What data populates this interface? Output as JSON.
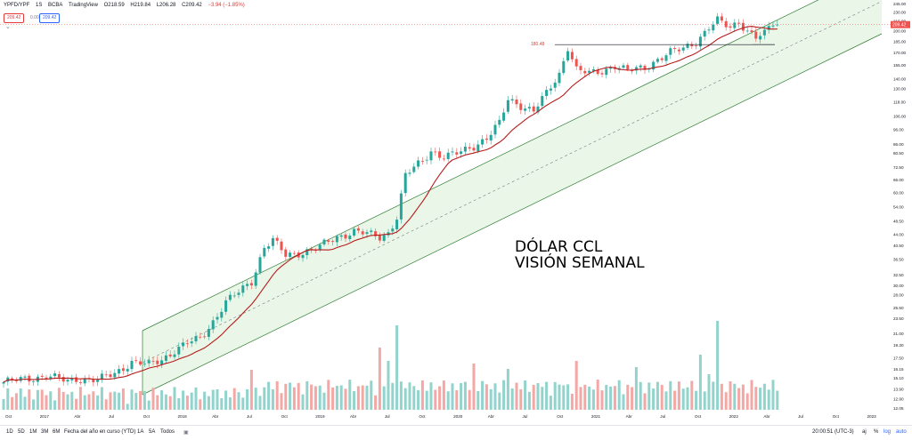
{
  "header": {
    "symbol": "YPFD/YPF",
    "interval": "1S",
    "exchange": "BCBA",
    "source": "TradingView",
    "open": "O218.59",
    "high": "H219.84",
    "low": "L206.28",
    "close": "C209.42",
    "change": "−3.94 (−1.85%)",
    "bid": "209.42",
    "spread": "0.00",
    "ask": "209.42",
    "chevron": "⌄"
  },
  "annotation": {
    "line1": "DÓLAR CCL",
    "line2": "VISIÓN SEMANAL"
  },
  "resistance_label": "180.48",
  "last_price_label": "209.42",
  "colors": {
    "up": "#26a69a",
    "down": "#ef5350",
    "vol_up": "#92d3cc",
    "vol_down": "#f4a8a6",
    "channel_fill": "#eaf6e8",
    "channel_line": "#2e7d32",
    "ma": "#b71c1c"
  },
  "chart_data": {
    "type": "candlestick",
    "scale": "log",
    "y_ticks": [
      "245.00",
      "230.00",
      "215.00",
      "200.00",
      "185.00",
      "170.00",
      "155.00",
      "140.00",
      "130.00",
      "118.00",
      "106.00",
      "96.00",
      "86.00",
      "80.50",
      "72.50",
      "66.00",
      "60.00",
      "54.00",
      "48.50",
      "44.00",
      "40.50",
      "36.50",
      "32.50",
      "30.00",
      "28.00",
      "25.50",
      "23.50",
      "21.00",
      "19.30",
      "17.50",
      "16.15",
      "15.10",
      "13.90",
      "12.90",
      "12.05"
    ],
    "x_ticks": [
      "Oct",
      "2017",
      "Abr",
      "Jul",
      "Oct",
      "2018",
      "Abr",
      "Jul",
      "Oct",
      "2019",
      "Abr",
      "Jul",
      "Oct",
      "2020",
      "Abr",
      "Jul",
      "Oct",
      "2021",
      "Abr",
      "Jul",
      "Oct",
      "2022",
      "Abr",
      "Jul",
      "Oct",
      "2023"
    ],
    "series_waypoints": [
      {
        "x": 0,
        "v": 14.6
      },
      {
        "x": 10,
        "v": 15.3
      },
      {
        "x": 15,
        "v": 14.7
      },
      {
        "x": 17,
        "v": 15.0
      },
      {
        "x": 22,
        "v": 14.8
      },
      {
        "x": 26,
        "v": 15.6
      },
      {
        "x": 30,
        "v": 17.0
      },
      {
        "x": 34,
        "v": 16.6
      },
      {
        "x": 37,
        "v": 17.3
      },
      {
        "x": 40,
        "v": 18.5
      },
      {
        "x": 43,
        "v": 19.5
      },
      {
        "x": 46,
        "v": 20.2
      },
      {
        "x": 49,
        "v": 23.0
      },
      {
        "x": 52,
        "v": 26.5
      },
      {
        "x": 55,
        "v": 28.5
      },
      {
        "x": 58,
        "v": 31.0
      },
      {
        "x": 61,
        "v": 40.0
      },
      {
        "x": 63,
        "v": 42.0
      },
      {
        "x": 66,
        "v": 37.5
      },
      {
        "x": 70,
        "v": 38.5
      },
      {
        "x": 74,
        "v": 40.0
      },
      {
        "x": 78,
        "v": 43.0
      },
      {
        "x": 82,
        "v": 45.0
      },
      {
        "x": 85,
        "v": 44.0
      },
      {
        "x": 88,
        "v": 43.0
      },
      {
        "x": 90,
        "v": 44.5
      },
      {
        "x": 92,
        "v": 50.0
      },
      {
        "x": 94,
        "v": 68.0
      },
      {
        "x": 96,
        "v": 72.0
      },
      {
        "x": 98,
        "v": 76.0
      },
      {
        "x": 100,
        "v": 82.0
      },
      {
        "x": 103,
        "v": 78.0
      },
      {
        "x": 106,
        "v": 80.0
      },
      {
        "x": 110,
        "v": 85.0
      },
      {
        "x": 113,
        "v": 90.0
      },
      {
        "x": 116,
        "v": 100.0
      },
      {
        "x": 118,
        "v": 120.0
      },
      {
        "x": 121,
        "v": 115.0
      },
      {
        "x": 124,
        "v": 110.0
      },
      {
        "x": 127,
        "v": 125.0
      },
      {
        "x": 130,
        "v": 145.0
      },
      {
        "x": 132,
        "v": 178.0
      },
      {
        "x": 134,
        "v": 150.0
      },
      {
        "x": 137,
        "v": 145.0
      },
      {
        "x": 140,
        "v": 148.0
      },
      {
        "x": 143,
        "v": 155.0
      },
      {
        "x": 146,
        "v": 148.0
      },
      {
        "x": 150,
        "v": 152.0
      },
      {
        "x": 153,
        "v": 162.0
      },
      {
        "x": 156,
        "v": 170.0
      },
      {
        "x": 159,
        "v": 175.0
      },
      {
        "x": 162,
        "v": 185.0
      },
      {
        "x": 165,
        "v": 205.0
      },
      {
        "x": 167,
        "v": 215.0
      },
      {
        "x": 170,
        "v": 205.0
      },
      {
        "x": 172,
        "v": 215.0
      },
      {
        "x": 174,
        "v": 200.0
      },
      {
        "x": 176,
        "v": 190.0
      },
      {
        "x": 178,
        "v": 195.0
      },
      {
        "x": 180,
        "v": 212.0
      },
      {
        "x": 181,
        "v": 209.42
      }
    ]
  },
  "bottom_bar": {
    "timeframes": [
      "1D",
      "5D",
      "1M",
      "3M",
      "6M",
      "Fecha del año en curso (YTD)",
      "1A",
      "5A",
      "Todos"
    ],
    "clock": "20:00:51 (UTC-3)",
    "pct_label": "%",
    "log_label": "log",
    "auto_label": "auto",
    "adj_label": "aj"
  }
}
